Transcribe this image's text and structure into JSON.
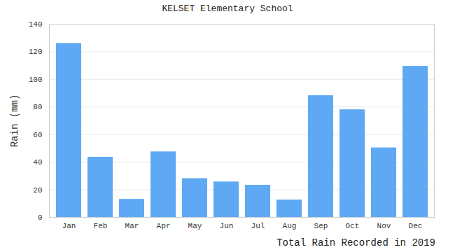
{
  "chart_data": {
    "type": "bar",
    "title": "KELSET Elementary School",
    "caption": "Total Rain Recorded in 2019",
    "y_label": "Rain (mm)",
    "categories": [
      "Jan",
      "Feb",
      "Mar",
      "Apr",
      "May",
      "Jun",
      "Jul",
      "Aug",
      "Sep",
      "Oct",
      "Nov",
      "Dec"
    ],
    "values": [
      126,
      43.6,
      13.1,
      47.5,
      28.1,
      25.7,
      23.3,
      12.6,
      88.2,
      78,
      50.4,
      109.5
    ],
    "color": "#5ea8f4",
    "ylim": [
      0,
      140
    ],
    "yticks": [
      0,
      20,
      40,
      60,
      80,
      100,
      120,
      140
    ],
    "grid": true
  }
}
